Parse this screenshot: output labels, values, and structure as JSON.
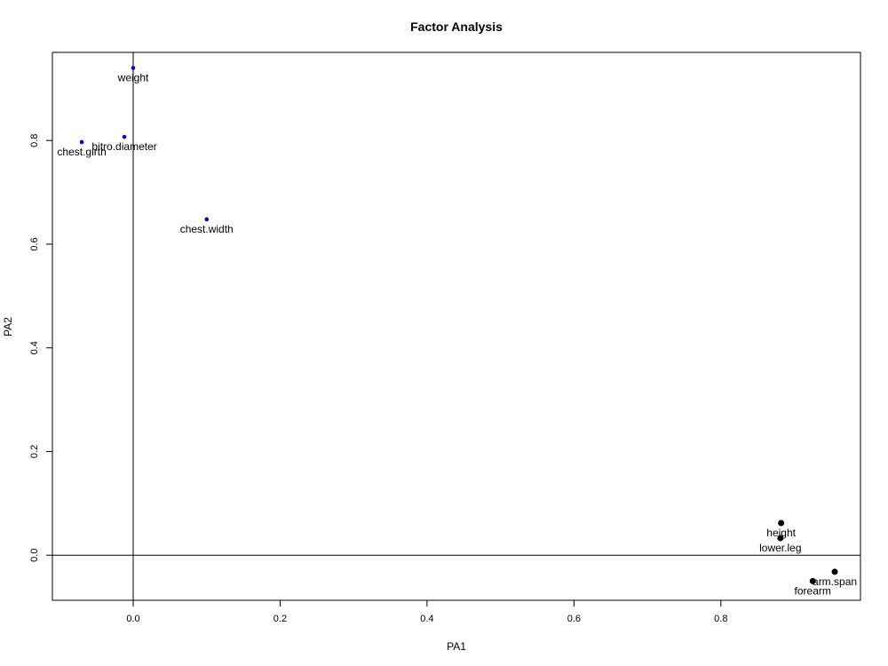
{
  "chart_data": {
    "type": "scatter",
    "title": "Factor Analysis",
    "xlabel": "PA1",
    "ylabel": "PA2",
    "xlim": [
      -0.11,
      0.99
    ],
    "ylim": [
      -0.087,
      0.97
    ],
    "x_ticks": [
      "0.0",
      "0.2",
      "0.4",
      "0.6",
      "0.8"
    ],
    "y_ticks": [
      "0.0",
      "0.2",
      "0.4",
      "0.6",
      "0.8"
    ],
    "grid": false,
    "reference_lines": {
      "x": 0,
      "y": 0
    },
    "groups": [
      {
        "color": "#0000cc",
        "marker": "small"
      },
      {
        "color": "#000000",
        "marker": "large"
      }
    ],
    "points": [
      {
        "label": "weight",
        "x": 0.0,
        "y": 0.94,
        "group": 0
      },
      {
        "label": "bitro.diameter",
        "x": -0.012,
        "y": 0.807,
        "group": 0
      },
      {
        "label": "chest.girth",
        "x": -0.07,
        "y": 0.797,
        "group": 0
      },
      {
        "label": "chest.width",
        "x": 0.1,
        "y": 0.648,
        "group": 0
      },
      {
        "label": "height",
        "x": 0.882,
        "y": 0.062,
        "group": 1
      },
      {
        "label": "lower.leg",
        "x": 0.881,
        "y": 0.033,
        "group": 1
      },
      {
        "label": "arm.span",
        "x": 0.955,
        "y": -0.032,
        "group": 1
      },
      {
        "label": "forearm",
        "x": 0.925,
        "y": -0.05,
        "group": 1
      }
    ]
  }
}
